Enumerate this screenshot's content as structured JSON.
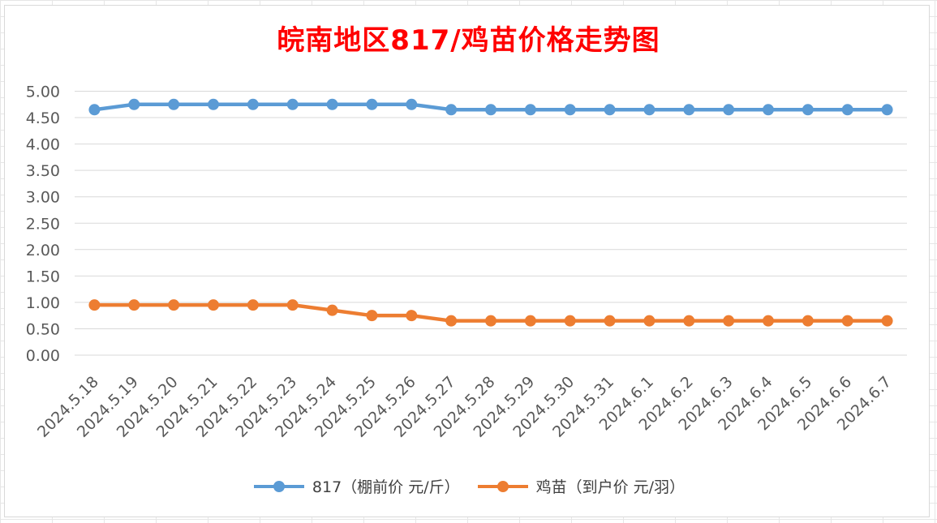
{
  "colors": {
    "title": "#ff0000",
    "series_1": "#5b9bd5",
    "series_2": "#ed7d31",
    "grid": "#d9d9d9",
    "axis_text": "#595959"
  },
  "chart_data": {
    "type": "line",
    "title": "皖南地区817/鸡苗价格走势图",
    "xlabel": "",
    "ylabel": "",
    "ylim": [
      0,
      5
    ],
    "y_ticks": [
      "0.00",
      "0.50",
      "1.00",
      "1.50",
      "2.00",
      "2.50",
      "3.00",
      "3.50",
      "4.00",
      "4.50",
      "5.00"
    ],
    "categories": [
      "2024.5.18",
      "2024.5.19",
      "2024.5.20",
      "2024.5.21",
      "2024.5.22",
      "2024.5.23",
      "2024.5.24",
      "2024.5.25",
      "2024.5.26",
      "2024.5.27",
      "2024.5.28",
      "2024.5.29",
      "2024.5.30",
      "2024.5.31",
      "2024.6.1",
      "2024.6.2",
      "2024.6.3",
      "2024.6.4",
      "2024.6.5",
      "2024.6.6",
      "2024.6.7"
    ],
    "series": [
      {
        "name": "817（棚前价 元/斤）",
        "values": [
          4.65,
          4.75,
          4.75,
          4.75,
          4.75,
          4.75,
          4.75,
          4.75,
          4.75,
          4.65,
          4.65,
          4.65,
          4.65,
          4.65,
          4.65,
          4.65,
          4.65,
          4.65,
          4.65,
          4.65,
          4.65
        ]
      },
      {
        "name": "鸡苗（到户价 元/羽）",
        "values": [
          0.95,
          0.95,
          0.95,
          0.95,
          0.95,
          0.95,
          0.85,
          0.75,
          0.75,
          0.65,
          0.65,
          0.65,
          0.65,
          0.65,
          0.65,
          0.65,
          0.65,
          0.65,
          0.65,
          0.65,
          0.65
        ]
      }
    ],
    "grid": true,
    "legend_position": "bottom"
  }
}
